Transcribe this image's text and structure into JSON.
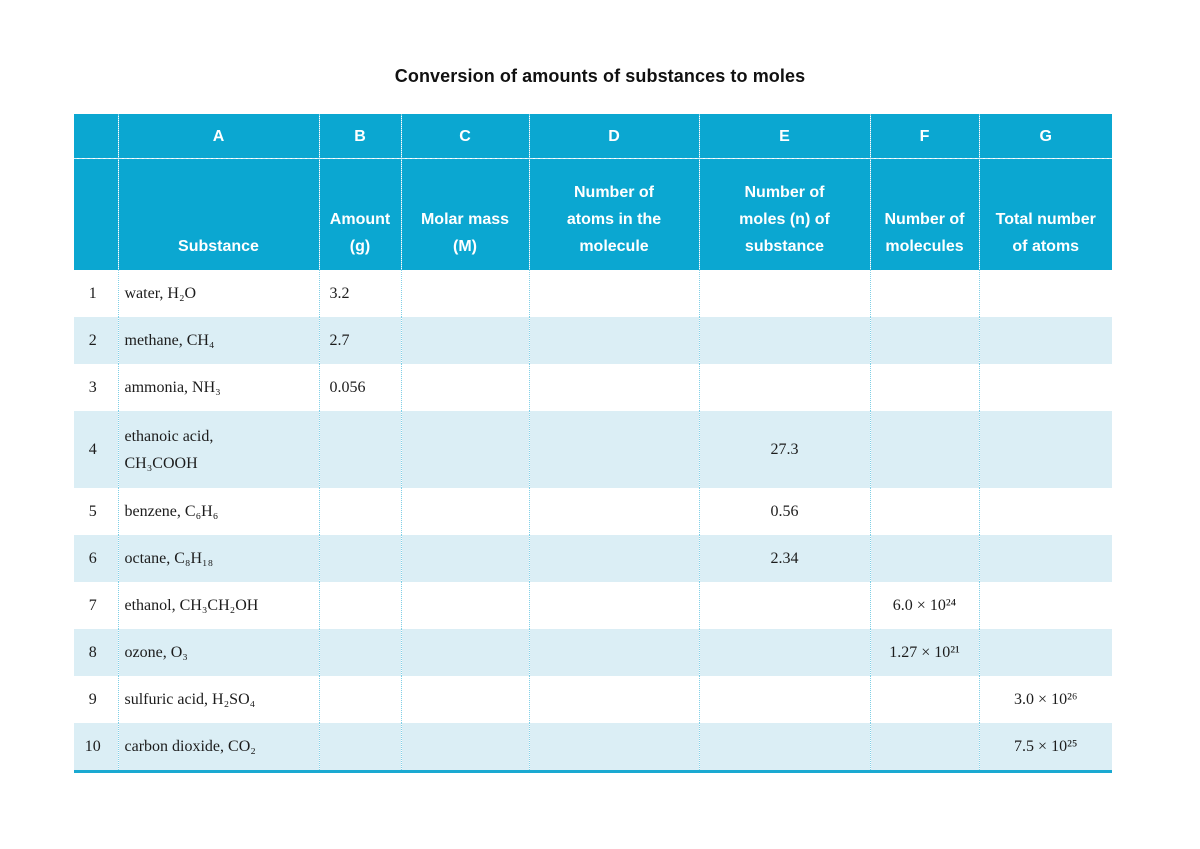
{
  "title": "Conversion of amounts of substances to moles",
  "column_letters": [
    "",
    "A",
    "B",
    "C",
    "D",
    "E",
    "F",
    "G"
  ],
  "column_headers": [
    "",
    "Substance",
    "Amount\n(g)",
    "Molar mass\n(M)",
    "Number of\natoms in the\nmolecule",
    "Number of\nmoles (n) of\nsubstance",
    "Number of\nmolecules",
    "Total number\nof atoms"
  ],
  "colors": {
    "header_bg": "#0ba7d1",
    "alt_row_bg": "#dbeef5",
    "rule": "#1aa9d1"
  },
  "rows": [
    {
      "num": "1",
      "name": "water, ",
      "formula": "H₂O",
      "B": "3.2",
      "C": "",
      "D": "",
      "E": "",
      "F": "",
      "G": ""
    },
    {
      "num": "2",
      "name": "methane, ",
      "formula": "CH₄",
      "B": "2.7",
      "C": "",
      "D": "",
      "E": "",
      "F": "",
      "G": ""
    },
    {
      "num": "3",
      "name": "ammonia, ",
      "formula": "NH₃",
      "B": "0.056",
      "C": "",
      "D": "",
      "E": "",
      "F": "",
      "G": ""
    },
    {
      "num": "4",
      "name": "ethanoic acid,\n",
      "formula": "CH₃COOH",
      "B": "",
      "C": "",
      "D": "",
      "E": "27.3",
      "F": "",
      "G": ""
    },
    {
      "num": "5",
      "name": "benzene, ",
      "formula": "C₆H₆",
      "B": "",
      "C": "",
      "D": "",
      "E": "0.56",
      "F": "",
      "G": ""
    },
    {
      "num": "6",
      "name": "octane, ",
      "formula": "C₈H₁₈",
      "B": "",
      "C": "",
      "D": "",
      "E": "2.34",
      "F": "",
      "G": ""
    },
    {
      "num": "7",
      "name": "ethanol, ",
      "formula": "CH₃CH₂OH",
      "B": "",
      "C": "",
      "D": "",
      "E": "",
      "F": "6.0 × 10²⁴",
      "G": ""
    },
    {
      "num": "8",
      "name": "ozone, ",
      "formula": "O₃",
      "B": "",
      "C": "",
      "D": "",
      "E": "",
      "F": "1.27 × 10²¹",
      "G": ""
    },
    {
      "num": "9",
      "name": "sulfuric acid, ",
      "formula": "H₂SO₄",
      "B": "",
      "C": "",
      "D": "",
      "E": "",
      "F": "",
      "G": "3.0 × 10²⁶"
    },
    {
      "num": "10",
      "name": "carbon dioxide, ",
      "formula": "CO₂",
      "B": "",
      "C": "",
      "D": "",
      "E": "",
      "F": "",
      "G": "7.5 × 10²⁵"
    }
  ]
}
